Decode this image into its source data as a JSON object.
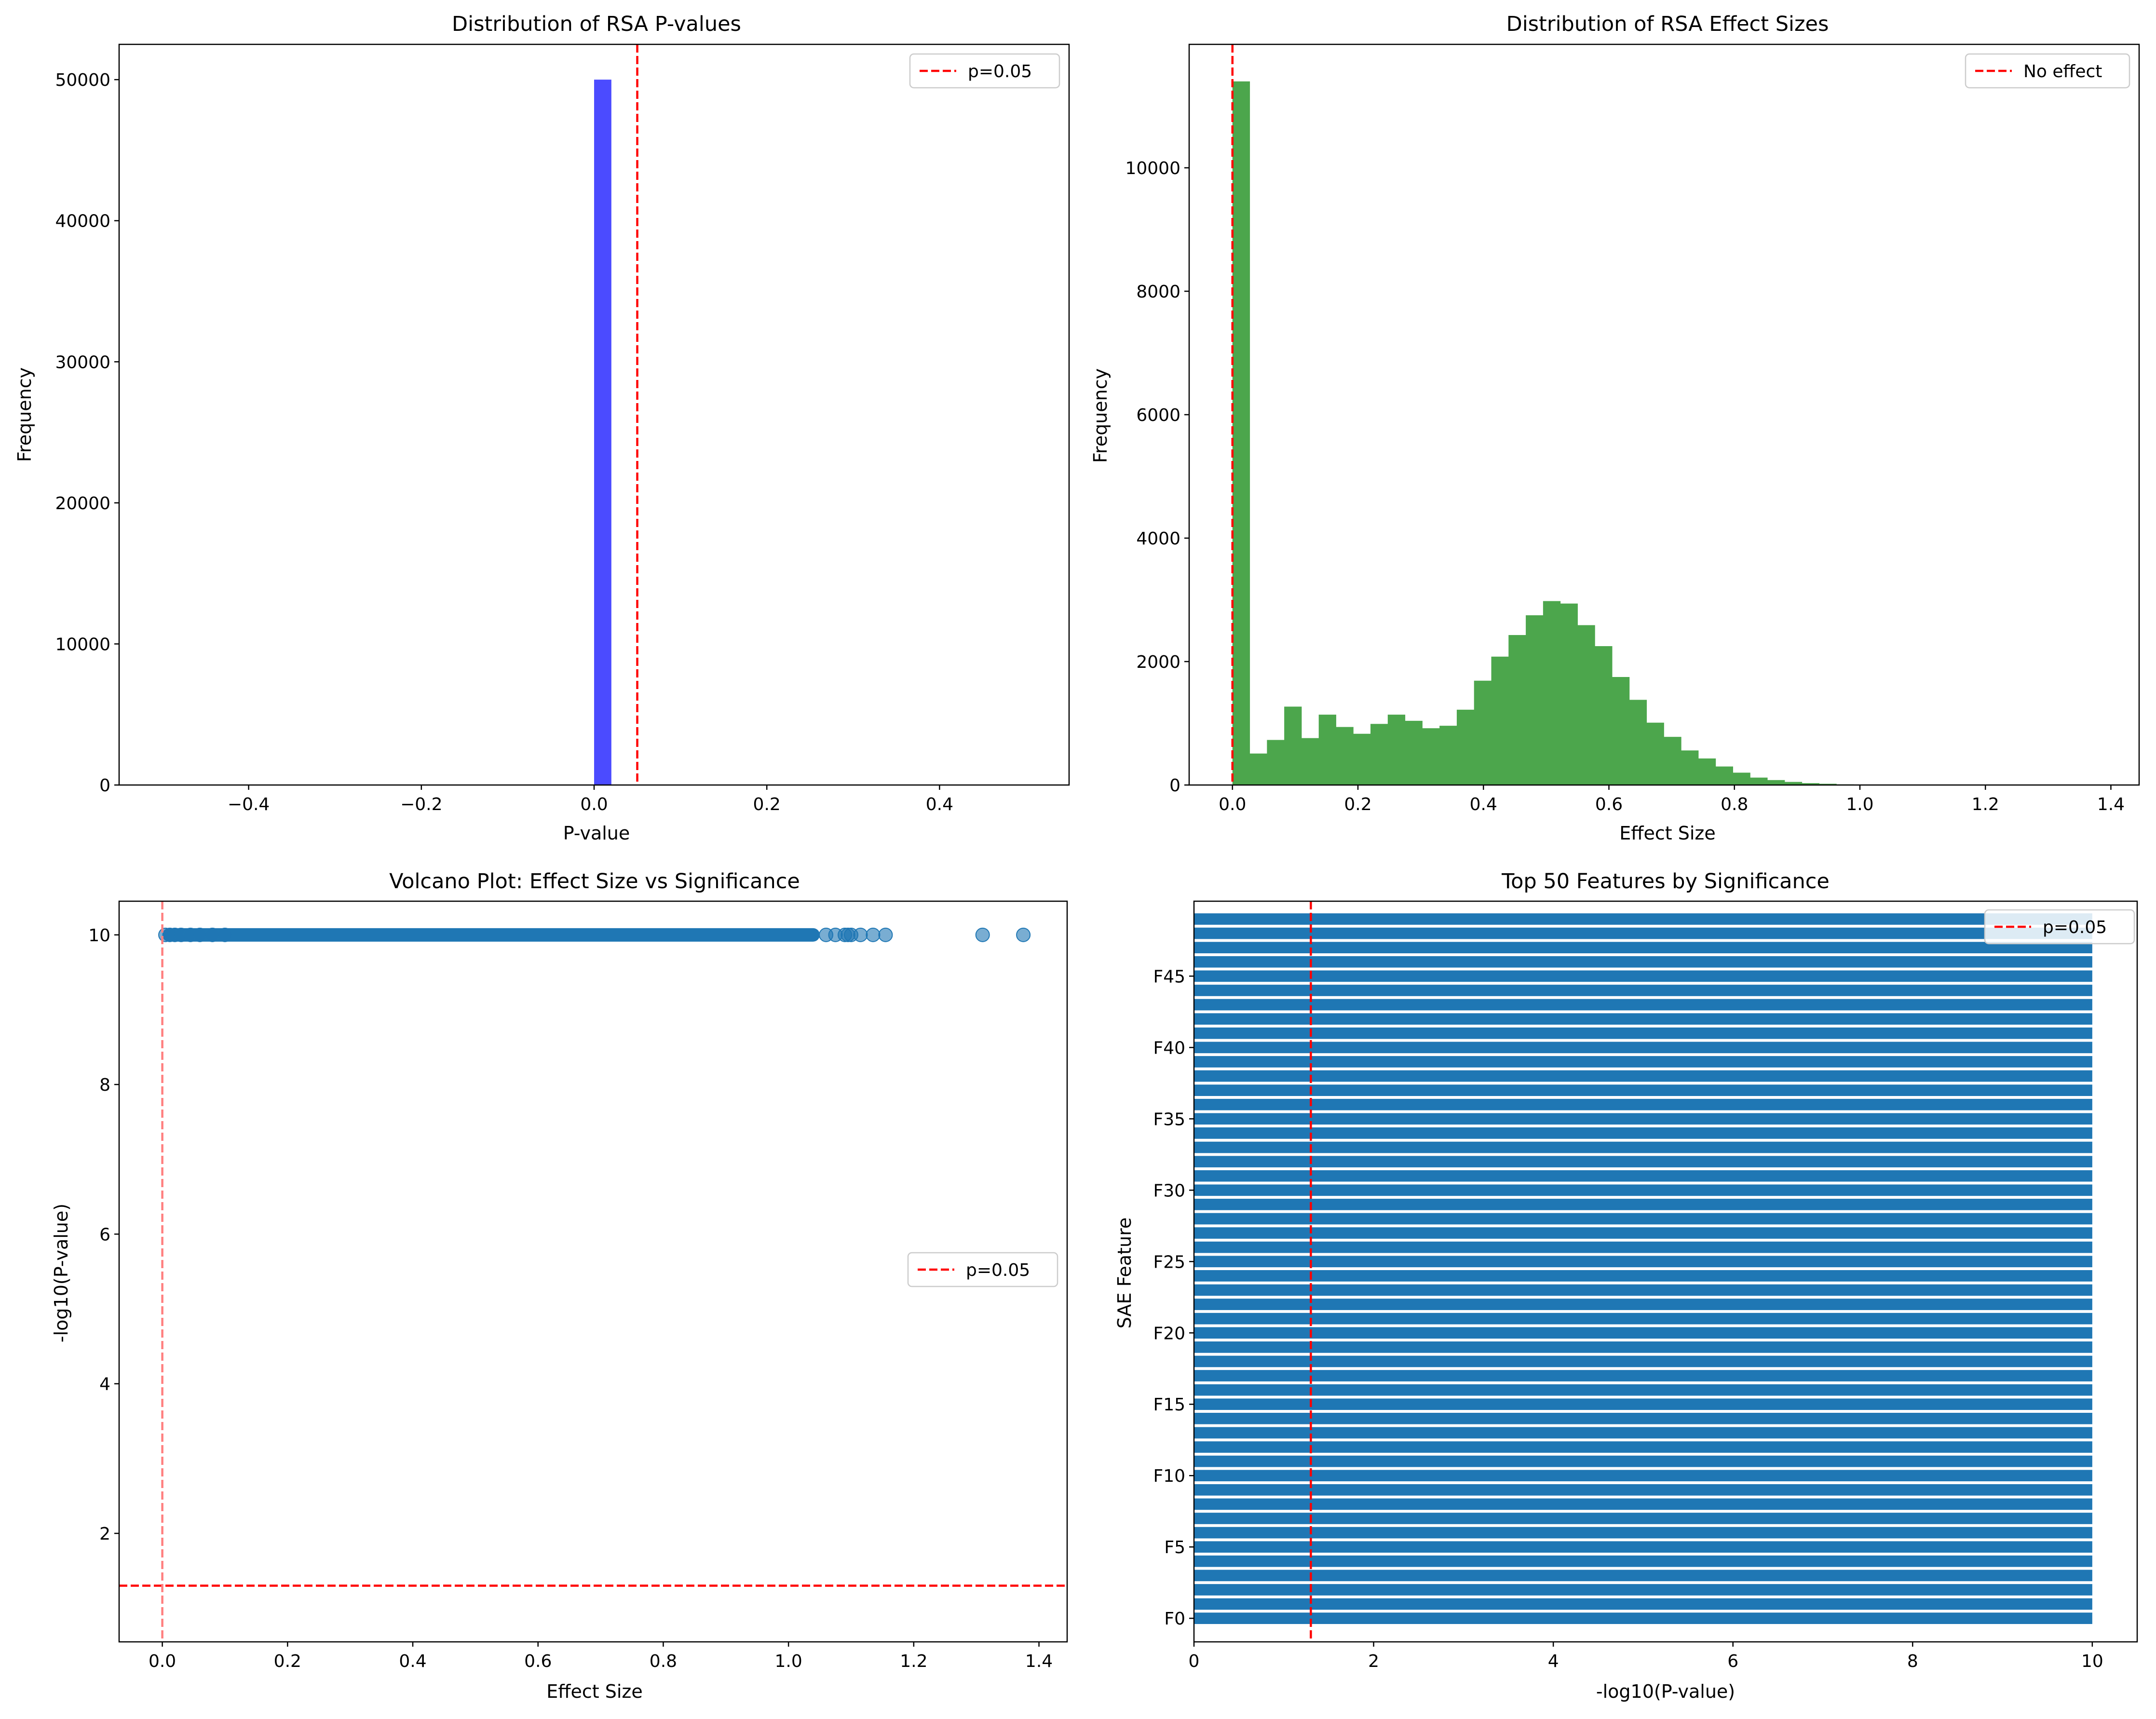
{
  "chart_data": [
    {
      "type": "bar",
      "title": "Distribution of RSA P-values",
      "xlabel": "P-value",
      "ylabel": "Frequency",
      "xlim": [
        -0.55,
        0.55
      ],
      "ylim": [
        0,
        52500
      ],
      "xticks": [
        -0.4,
        -0.2,
        0.0,
        0.2,
        0.4
      ],
      "xtick_labels": [
        "−0.4",
        "−0.2",
        "0.0",
        "0.2",
        "0.4"
      ],
      "yticks": [
        0,
        10000,
        20000,
        30000,
        40000,
        50000
      ],
      "ytick_labels": [
        "0",
        "10000",
        "20000",
        "30000",
        "40000",
        "50000"
      ],
      "bars": [
        {
          "x0": 0.0,
          "x1": 0.02,
          "value": 50000
        }
      ],
      "bar_color": "#4b4bff",
      "vline": {
        "x": 0.05,
        "color": "#ff0000",
        "label": "p=0.05"
      },
      "legend": "top-right",
      "grid": false
    },
    {
      "type": "bar",
      "title": "Distribution of RSA Effect Sizes",
      "xlabel": "Effect Size",
      "ylabel": "Frequency",
      "xlim": [
        -0.069,
        1.445
      ],
      "ylim": [
        0,
        12000
      ],
      "xticks": [
        0.0,
        0.2,
        0.4,
        0.6,
        0.8,
        1.0,
        1.2,
        1.4
      ],
      "xtick_labels": [
        "0.0",
        "0.2",
        "0.4",
        "0.6",
        "0.8",
        "1.0",
        "1.2",
        "1.4"
      ],
      "yticks": [
        0,
        2000,
        4000,
        6000,
        8000,
        10000
      ],
      "ytick_labels": [
        "0",
        "2000",
        "4000",
        "6000",
        "8000",
        "10000"
      ],
      "bin_start": 0.0,
      "bin_width": 0.0275,
      "values": [
        11400,
        510,
        730,
        1270,
        760,
        1140,
        940,
        830,
        990,
        1140,
        1040,
        920,
        960,
        1220,
        1690,
        2080,
        2430,
        2750,
        2980,
        2940,
        2590,
        2250,
        1750,
        1380,
        1010,
        780,
        560,
        430,
        300,
        200,
        120,
        80,
        50,
        30,
        20,
        10,
        5,
        3,
        2,
        1,
        1,
        1,
        1,
        1,
        1,
        1,
        1,
        1,
        1,
        1
      ],
      "bar_color": "#4ca64c",
      "vline": {
        "x": 0.0,
        "color": "#ff0000",
        "label": "No effect"
      },
      "legend": "top-right",
      "grid": false
    },
    {
      "type": "scatter",
      "title": "Volcano Plot: Effect Size vs Significance",
      "xlabel": "Effect Size",
      "ylabel": "-log10(P-value)",
      "xlim": [
        -0.069,
        1.445
      ],
      "ylim": [
        0.55,
        10.45
      ],
      "xticks": [
        0.0,
        0.2,
        0.4,
        0.6,
        0.8,
        1.0,
        1.2,
        1.4
      ],
      "xtick_labels": [
        "0.0",
        "0.2",
        "0.4",
        "0.6",
        "0.8",
        "1.0",
        "1.2",
        "1.4"
      ],
      "yticks": [
        2,
        4,
        6,
        8,
        10
      ],
      "ytick_labels": [
        "2",
        "4",
        "6",
        "8",
        "10"
      ],
      "points": {
        "y": 10,
        "band_from": 0.0,
        "band_to": 1.05,
        "x": [
          0.005,
          0.012,
          0.02,
          0.03,
          0.045,
          0.06,
          0.08,
          0.1,
          1.06,
          1.075,
          1.09,
          1.095,
          1.1,
          1.115,
          1.135,
          1.155,
          1.31,
          1.375
        ]
      },
      "point_color": "#1f77b4",
      "hline": {
        "y": 1.301,
        "color": "#ff0000",
        "label": "p=0.05"
      },
      "vline": {
        "x": 0.0,
        "color": "#ff7f7f"
      },
      "legend": "center-right",
      "grid": false
    },
    {
      "type": "bar",
      "orientation": "horizontal",
      "title": "Top 50 Features by Significance",
      "xlabel": "-log10(P-value)",
      "ylabel": "SAE Feature",
      "xlim": [
        0,
        10.5
      ],
      "ylim": [
        -1.65,
        50.25
      ],
      "xticks": [
        0,
        2,
        4,
        6,
        8,
        10
      ],
      "xtick_labels": [
        "0",
        "2",
        "4",
        "6",
        "8",
        "10"
      ],
      "yticks": [
        0,
        5,
        10,
        15,
        20,
        25,
        30,
        35,
        40,
        45
      ],
      "ytick_labels": [
        "F0",
        "F5",
        "F10",
        "F15",
        "F20",
        "F25",
        "F30",
        "F35",
        "F40",
        "F45"
      ],
      "bar_count": 50,
      "values_all": 10,
      "bar_color": "#1f77b4",
      "vline": {
        "x": 1.301,
        "color": "#ff0000",
        "label": "p=0.05"
      },
      "legend": "top-right",
      "grid": false
    }
  ]
}
